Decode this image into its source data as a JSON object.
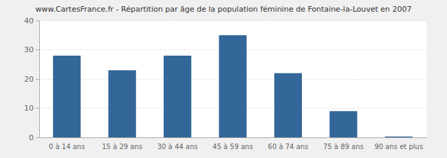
{
  "chart_data": {
    "type": "bar",
    "title": "www.CartesFrance.fr - Répartition par âge de la population féminine de Fontaine-la-Louvet en 2007",
    "categories": [
      "0 à 14 ans",
      "15 à 29 ans",
      "30 à 44 ans",
      "45 à 59 ans",
      "60 à 74 ans",
      "75 à 89 ans",
      "90 ans et plus"
    ],
    "values": [
      28,
      23,
      28,
      35,
      22,
      9,
      0.3
    ],
    "color": "#336699",
    "ylim": [
      0,
      40
    ],
    "yticks": [
      0,
      10,
      20,
      30,
      40
    ],
    "grid": true
  }
}
